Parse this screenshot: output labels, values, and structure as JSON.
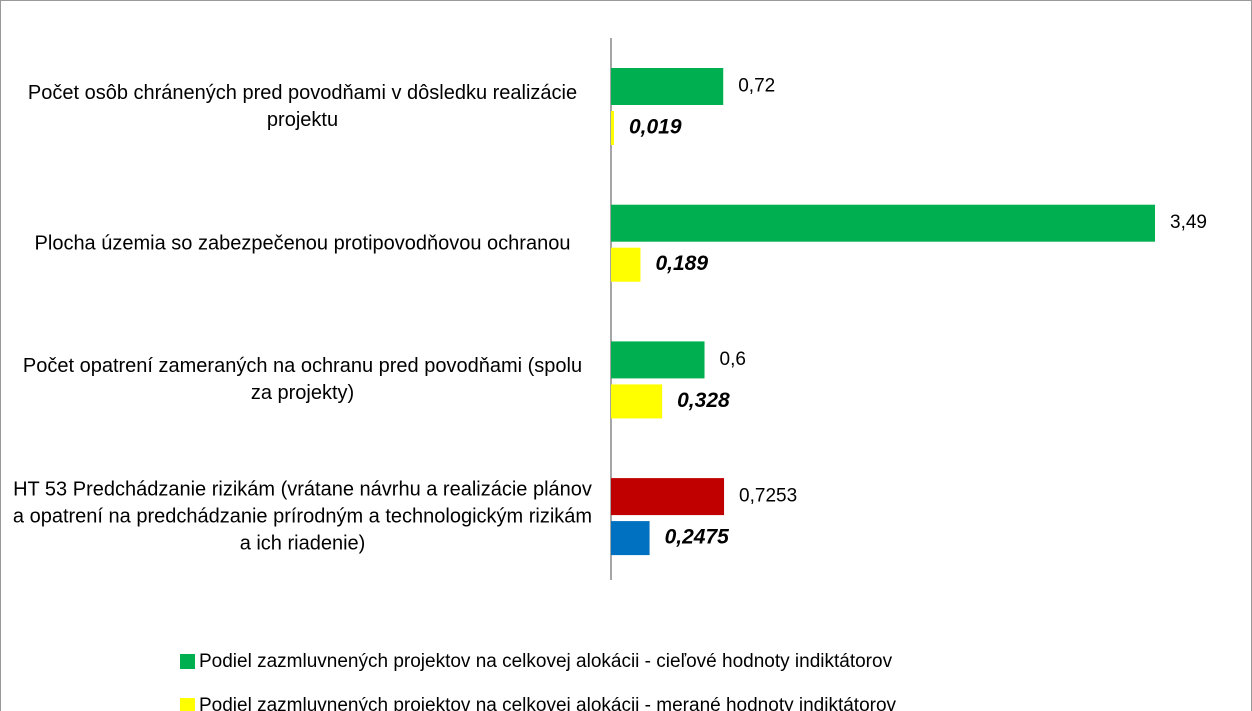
{
  "chart_data": {
    "type": "hbar",
    "categories": [
      "Počet osôb chránených pred povodňami v dôsledku realizácie projektu",
      "Plocha územia so zabezpečenou protipovodňovou ochranou",
      "Počet opatrení zameraných na ochranu pred povodňami (spolu za projekty)",
      "HT 53 Predchádzanie rizikám (vrátane návrhu a realizácie plánov a opatrení na predchádzanie prírodným a technologickým rizikám a ich riadenie)"
    ],
    "series": [
      {
        "name": "Podiel zazmluvnených projektov na celkovej alokácii - cieľové hodnoty indiktátorov",
        "color": "#00b050",
        "point_colors": [
          "#00b050",
          "#00b050",
          "#00b050",
          "#c00000"
        ],
        "values": [
          0.72,
          3.49,
          0.6,
          0.7253
        ],
        "value_labels": [
          "0,72",
          "3,49",
          "0,6",
          "0,7253"
        ]
      },
      {
        "name": "Podiel zazmluvnených projektov na celkovej alokácii - merané hodnoty  indiktátorov",
        "color": "#ffff00",
        "point_colors": [
          "#ffff00",
          "#ffff00",
          "#ffff00",
          "#0070c0"
        ],
        "values": [
          0.019,
          0.189,
          0.328,
          0.2475
        ],
        "value_labels": [
          "0,019",
          "0,189",
          "0,328",
          "0,2475"
        ]
      }
    ],
    "legend": "bottom"
  }
}
